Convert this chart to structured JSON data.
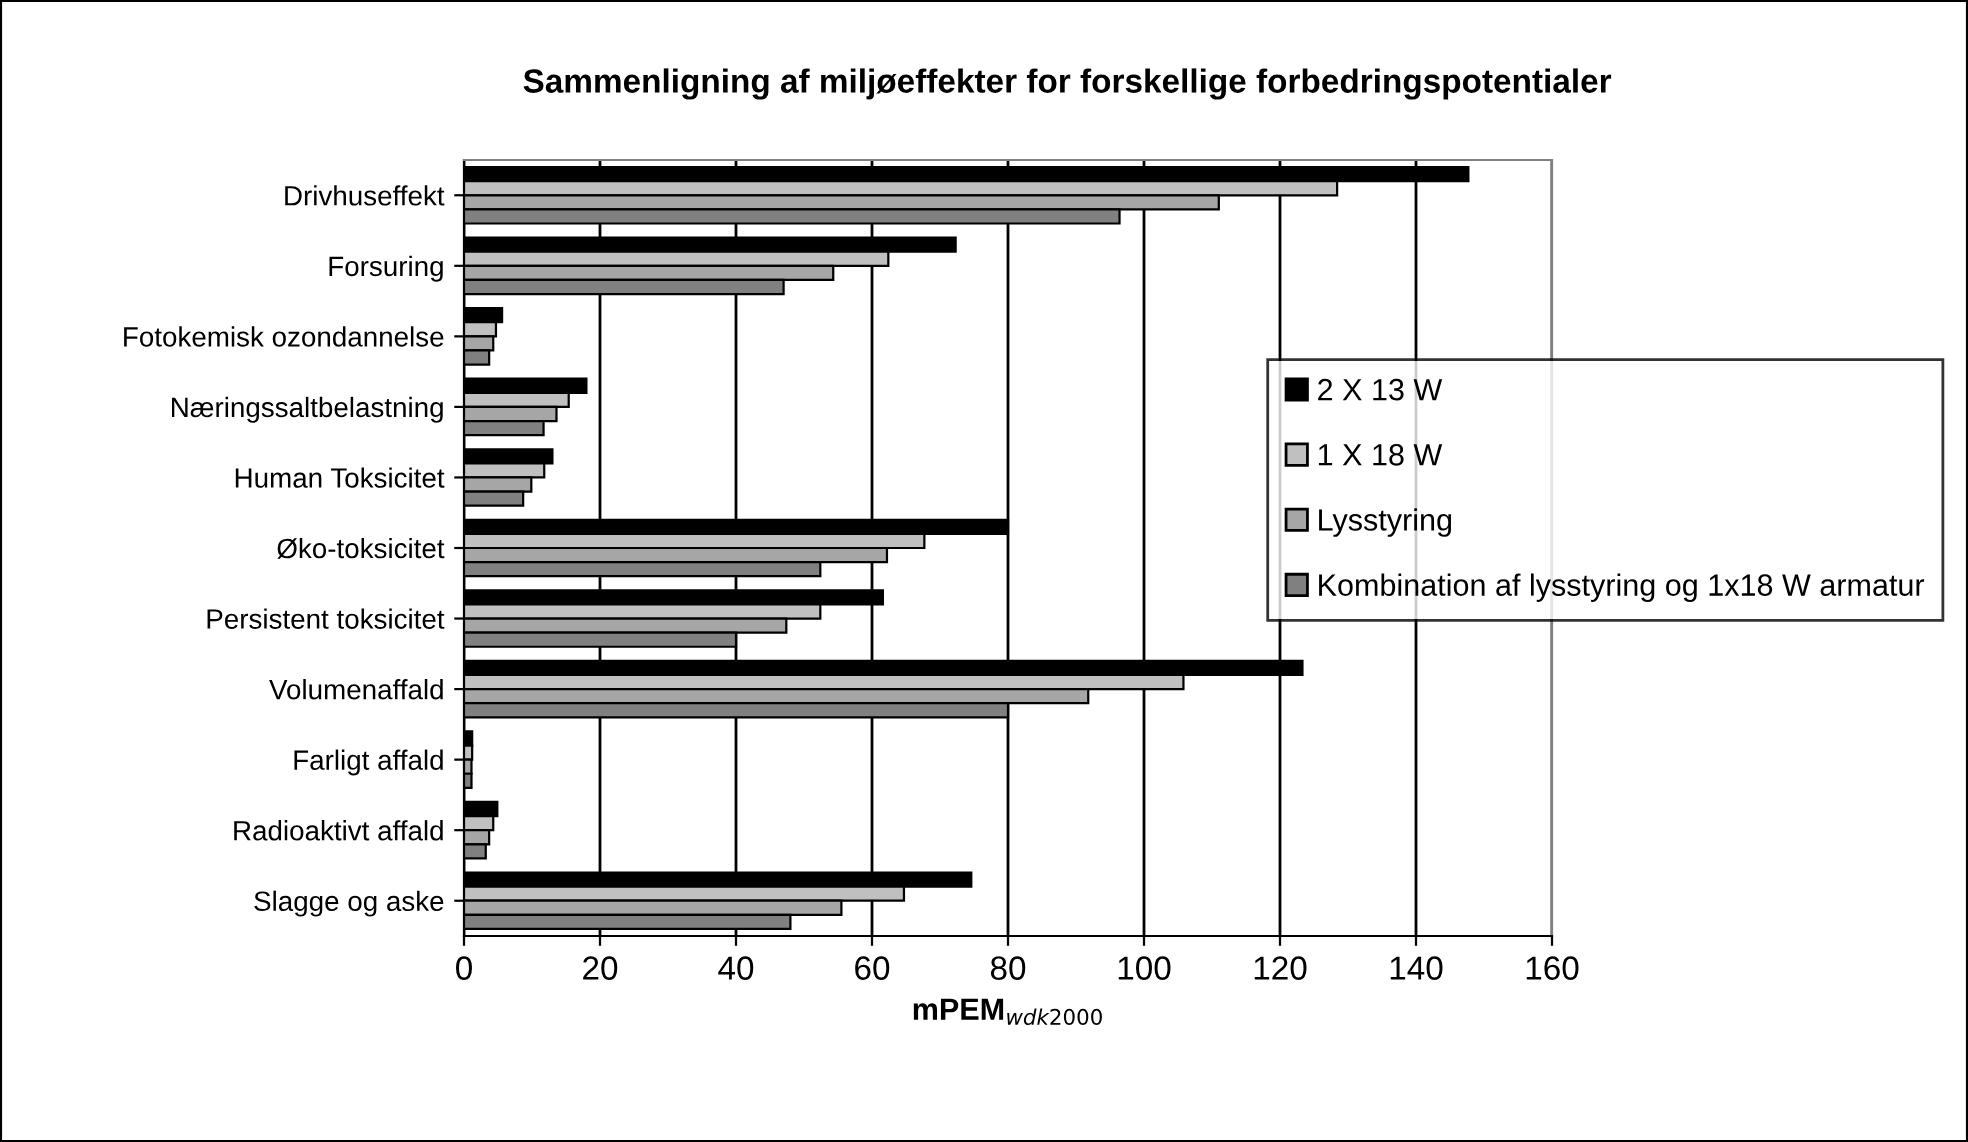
{
  "chart_data": {
    "type": "bar",
    "orientation": "horizontal",
    "title": "Sammenligning af miljøeffekter for forskellige forbedringspotentialer",
    "xlabel": "mPEM$_{wdk2000}$",
    "categories": [
      "Drivhuseffekt",
      "Forsuring",
      "Fotokemisk ozondannelse",
      "Næringssaltbelastning",
      "Human Toksicitet",
      "Øko-toksicitet",
      "Persistent toksicitet",
      "Volumenaffald",
      "Farligt affald",
      "Radioaktivt affald",
      "Slagge og aske"
    ],
    "series": [
      {
        "name": "2 X 13 W",
        "color": "#000000",
        "values": [
          147.7,
          72.3,
          5.6,
          18,
          13,
          80,
          61.6,
          123.3,
          1.2,
          4.9,
          74.6
        ]
      },
      {
        "name": "1 X 18 W",
        "color": "#c0c0c0",
        "values": [
          128.4,
          62.4,
          4.7,
          15.4,
          11.8,
          67.7,
          52.4,
          105.8,
          1.2,
          4.3,
          64.7
        ]
      },
      {
        "name": "Lysstyring",
        "color": "#a6a6a6",
        "values": [
          111,
          54.3,
          4.3,
          13.6,
          9.9,
          62.2,
          47.4,
          91.8,
          1.1,
          3.7,
          55.5
        ]
      },
      {
        "name": "Kombination af lysstyring og 1x18 W armatur",
        "color": "#808080",
        "values": [
          96.4,
          47,
          3.7,
          11.7,
          8.7,
          52.4,
          40,
          80,
          1.1,
          3.2,
          48
        ]
      }
    ],
    "xlim": [
      0,
      160
    ],
    "xticks": [
      0,
      20,
      40,
      60,
      80,
      100,
      120,
      140,
      160
    ],
    "grid": "x",
    "legend": "right"
  }
}
